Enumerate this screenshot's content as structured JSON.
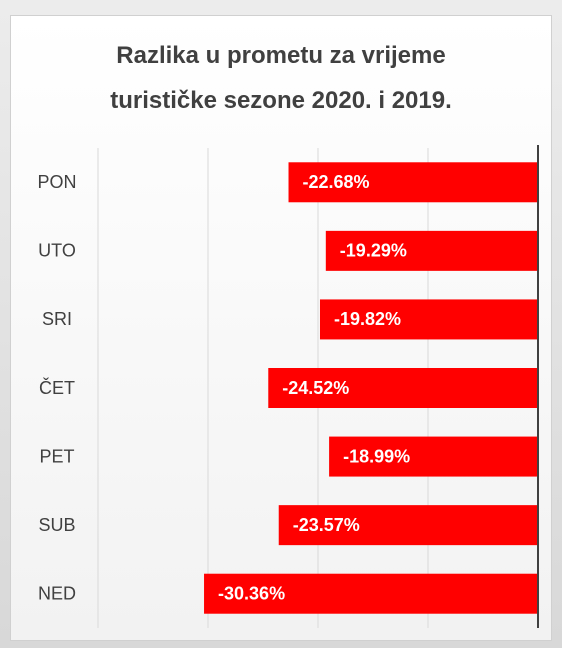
{
  "chart_data": {
    "type": "bar",
    "orientation": "horizontal",
    "title": "Razlika u prometu za vrijeme turističke sezone 2020. i 2019.",
    "categories": [
      "PON",
      "UTO",
      "SRI",
      "ČET",
      "PET",
      "SUB",
      "NED"
    ],
    "values": [
      -22.68,
      -19.29,
      -19.82,
      -24.52,
      -18.99,
      -23.57,
      -30.36
    ],
    "value_labels": [
      "-22.68%",
      "-19.29%",
      "-19.82%",
      "-24.52%",
      "-18.99%",
      "-23.57%",
      "-30.36%"
    ],
    "color": "#ff0000",
    "xlim": [
      -40,
      0
    ],
    "xticks": [
      -40,
      -30,
      -20,
      -10,
      0
    ],
    "grid": true
  }
}
